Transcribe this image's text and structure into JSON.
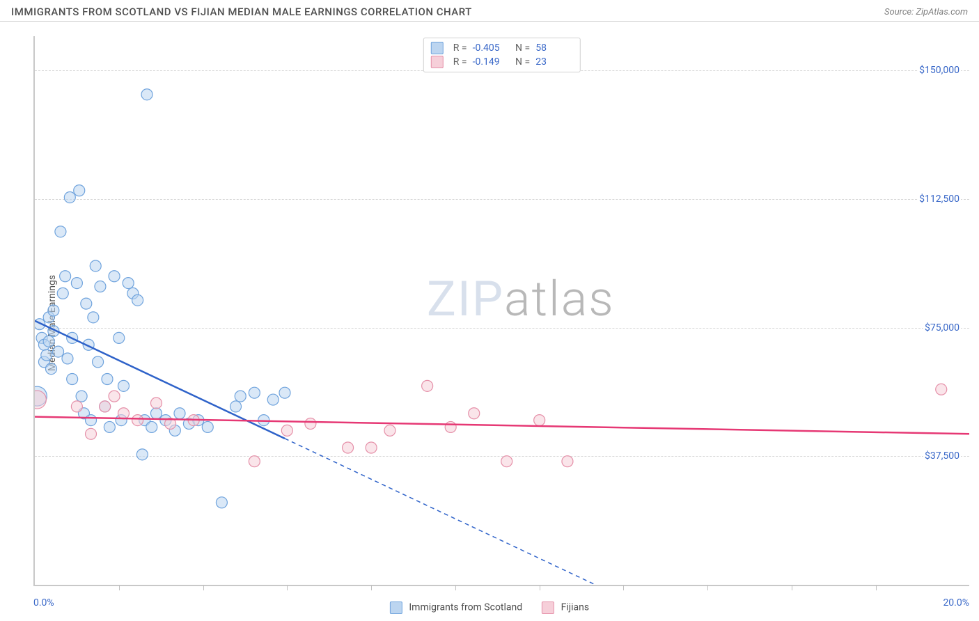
{
  "header": {
    "title": "IMMIGRANTS FROM SCOTLAND VS FIJIAN MEDIAN MALE EARNINGS CORRELATION CHART",
    "source_prefix": "Source: ",
    "source": "ZipAtlas.com"
  },
  "chart": {
    "type": "scatter",
    "ylabel": "Median Male Earnings",
    "xlim": [
      0.0,
      20.0
    ],
    "ylim": [
      0,
      160000
    ],
    "x_tick_positions": [
      1.8,
      3.6,
      5.4,
      7.2,
      9.0,
      10.8,
      12.6,
      14.4,
      16.2,
      18.0
    ],
    "x_axis_left_label": "0.0%",
    "x_axis_right_label": "20.0%",
    "y_gridlines": [
      37500,
      75000,
      112500,
      150000
    ],
    "y_tick_labels": [
      "$37,500",
      "$75,000",
      "$112,500",
      "$150,000"
    ],
    "grid_color": "#d8d8d8",
    "axis_color": "#c8c8c8",
    "background_color": "#ffffff",
    "tick_label_color": "#3867c8",
    "title_color": "#505050",
    "title_fontsize": 15,
    "label_fontsize": 14,
    "tick_fontsize": 14,
    "marker_radius": 8,
    "marker_stroke_width": 1.2,
    "trend_line_width": 2.5,
    "trend_dash_pattern": "6,5",
    "series": [
      {
        "name": "Immigrants from Scotland",
        "fill": "#bcd5f0",
        "stroke": "#6fa3dd",
        "fill_opacity": 0.55,
        "trend_color": "#2e62c9",
        "R": "-0.405",
        "N": "58",
        "trend": {
          "x1": 0.0,
          "y1": 77000,
          "x2": 12.0,
          "y2": 0
        },
        "points": [
          {
            "x": 0.05,
            "y": 55000,
            "r": 14
          },
          {
            "x": 0.1,
            "y": 76000
          },
          {
            "x": 0.15,
            "y": 72000
          },
          {
            "x": 0.2,
            "y": 65000
          },
          {
            "x": 0.2,
            "y": 70000
          },
          {
            "x": 0.25,
            "y": 67000
          },
          {
            "x": 0.3,
            "y": 78000
          },
          {
            "x": 0.3,
            "y": 71000
          },
          {
            "x": 0.35,
            "y": 63000
          },
          {
            "x": 0.4,
            "y": 74000
          },
          {
            "x": 0.4,
            "y": 80000
          },
          {
            "x": 0.5,
            "y": 68000
          },
          {
            "x": 0.55,
            "y": 103000
          },
          {
            "x": 0.6,
            "y": 85000
          },
          {
            "x": 0.65,
            "y": 90000
          },
          {
            "x": 0.7,
            "y": 66000
          },
          {
            "x": 0.75,
            "y": 113000
          },
          {
            "x": 0.8,
            "y": 72000
          },
          {
            "x": 0.8,
            "y": 60000
          },
          {
            "x": 0.9,
            "y": 88000
          },
          {
            "x": 0.95,
            "y": 115000
          },
          {
            "x": 1.0,
            "y": 55000
          },
          {
            "x": 1.05,
            "y": 50000
          },
          {
            "x": 1.1,
            "y": 82000
          },
          {
            "x": 1.15,
            "y": 70000
          },
          {
            "x": 1.2,
            "y": 48000
          },
          {
            "x": 1.25,
            "y": 78000
          },
          {
            "x": 1.3,
            "y": 93000
          },
          {
            "x": 1.35,
            "y": 65000
          },
          {
            "x": 1.4,
            "y": 87000
          },
          {
            "x": 1.5,
            "y": 52000
          },
          {
            "x": 1.55,
            "y": 60000
          },
          {
            "x": 1.6,
            "y": 46000
          },
          {
            "x": 1.7,
            "y": 90000
          },
          {
            "x": 1.8,
            "y": 72000
          },
          {
            "x": 1.85,
            "y": 48000
          },
          {
            "x": 1.9,
            "y": 58000
          },
          {
            "x": 2.0,
            "y": 88000
          },
          {
            "x": 2.1,
            "y": 85000
          },
          {
            "x": 2.2,
            "y": 83000
          },
          {
            "x": 2.3,
            "y": 38000
          },
          {
            "x": 2.35,
            "y": 48000
          },
          {
            "x": 2.4,
            "y": 143000
          },
          {
            "x": 2.5,
            "y": 46000
          },
          {
            "x": 2.6,
            "y": 50000
          },
          {
            "x": 2.8,
            "y": 48000
          },
          {
            "x": 3.0,
            "y": 45000
          },
          {
            "x": 3.1,
            "y": 50000
          },
          {
            "x": 3.3,
            "y": 47000
          },
          {
            "x": 3.5,
            "y": 48000
          },
          {
            "x": 3.7,
            "y": 46000
          },
          {
            "x": 4.0,
            "y": 24000
          },
          {
            "x": 4.3,
            "y": 52000
          },
          {
            "x": 4.4,
            "y": 55000
          },
          {
            "x": 4.7,
            "y": 56000
          },
          {
            "x": 4.9,
            "y": 48000
          },
          {
            "x": 5.1,
            "y": 54000
          },
          {
            "x": 5.35,
            "y": 56000
          }
        ]
      },
      {
        "name": "Fijians",
        "fill": "#f6cfd9",
        "stroke": "#e58fa8",
        "fill_opacity": 0.55,
        "trend_color": "#e63874",
        "R": "-0.149",
        "N": "23",
        "trend": {
          "x1": 0.0,
          "y1": 49000,
          "x2": 20.0,
          "y2": 44000
        },
        "points": [
          {
            "x": 0.05,
            "y": 54000,
            "r": 13
          },
          {
            "x": 0.9,
            "y": 52000
          },
          {
            "x": 1.2,
            "y": 44000
          },
          {
            "x": 1.5,
            "y": 52000
          },
          {
            "x": 1.7,
            "y": 55000
          },
          {
            "x": 1.9,
            "y": 50000
          },
          {
            "x": 2.2,
            "y": 48000
          },
          {
            "x": 2.6,
            "y": 53000
          },
          {
            "x": 2.9,
            "y": 47000
          },
          {
            "x": 3.4,
            "y": 48000
          },
          {
            "x": 4.7,
            "y": 36000
          },
          {
            "x": 5.4,
            "y": 45000
          },
          {
            "x": 5.9,
            "y": 47000
          },
          {
            "x": 6.7,
            "y": 40000
          },
          {
            "x": 7.2,
            "y": 40000
          },
          {
            "x": 7.6,
            "y": 45000
          },
          {
            "x": 8.4,
            "y": 58000
          },
          {
            "x": 8.9,
            "y": 46000
          },
          {
            "x": 9.4,
            "y": 50000
          },
          {
            "x": 10.1,
            "y": 36000
          },
          {
            "x": 10.8,
            "y": 48000
          },
          {
            "x": 11.4,
            "y": 36000
          },
          {
            "x": 19.4,
            "y": 57000
          }
        ]
      }
    ]
  },
  "watermark": {
    "part1": "ZIP",
    "part2": "atlas"
  }
}
